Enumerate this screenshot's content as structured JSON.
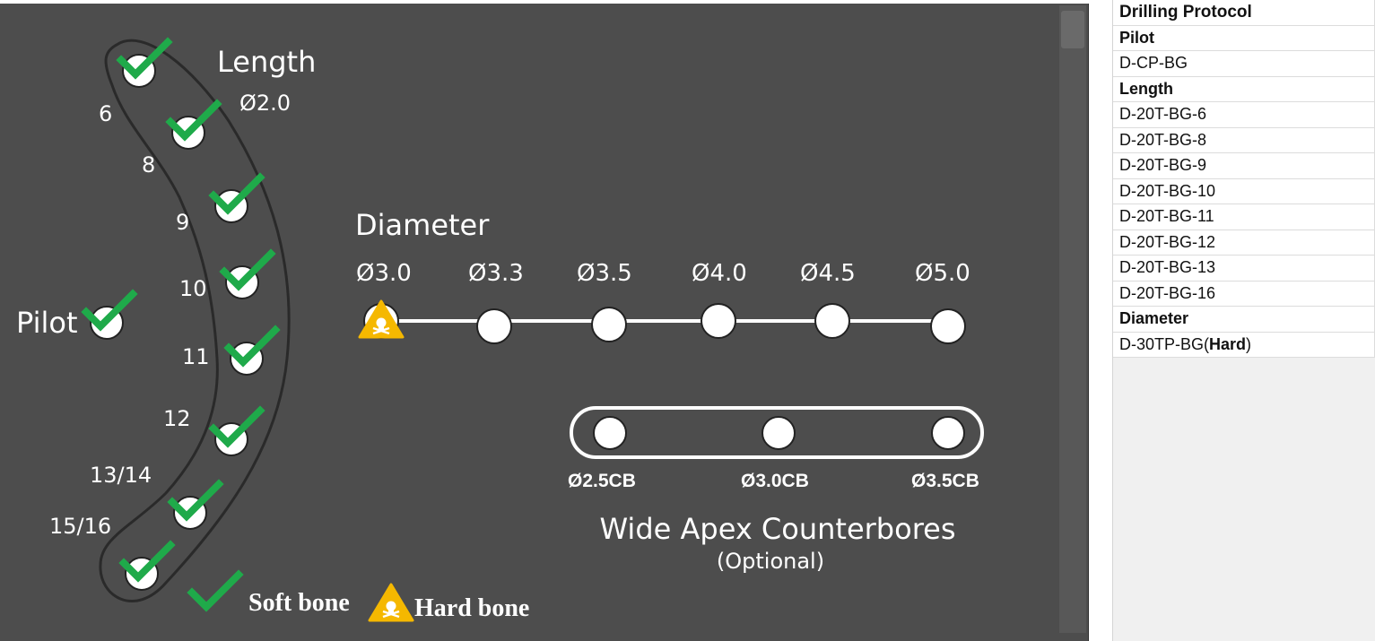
{
  "diagram": {
    "length_title": "Length",
    "length_diameter": "Ø2.0",
    "pilot_label": "Pilot",
    "length_steps": [
      "6",
      "8",
      "9",
      "10",
      "11",
      "12",
      "13/14",
      "15/16"
    ],
    "diameter_title": "Diameter",
    "diameter_steps": [
      "Ø3.0",
      "Ø3.3",
      "Ø3.5",
      "Ø4.0",
      "Ø4.5",
      "Ø5.0"
    ],
    "counterbore_steps": [
      "Ø2.5CB",
      "Ø3.0CB",
      "Ø3.5CB"
    ],
    "counterbore_title": "Wide Apex Counterbores",
    "counterbore_subtitle": "(Optional)",
    "legend_soft": "Soft bone",
    "legend_hard": "Hard bone",
    "colors": {
      "panel": "#4d4d4d",
      "check": "#1faa4a",
      "warning": "#f5b800",
      "node": "#ffffff"
    },
    "icons": [
      "check-icon",
      "warning-skull-icon"
    ]
  },
  "sheet": {
    "rows": [
      {
        "text": "Drilling Protocol",
        "style": "title"
      },
      {
        "text": "Pilot",
        "style": "header"
      },
      {
        "text": "D-CP-BG",
        "style": "normal"
      },
      {
        "text": "Length",
        "style": "header"
      },
      {
        "text": "D-20T-BG-6",
        "style": "normal"
      },
      {
        "text": "D-20T-BG-8",
        "style": "normal"
      },
      {
        "text": "D-20T-BG-9",
        "style": "normal"
      },
      {
        "text": "D-20T-BG-10",
        "style": "normal"
      },
      {
        "text": "D-20T-BG-11",
        "style": "normal"
      },
      {
        "text": "D-20T-BG-12",
        "style": "normal"
      },
      {
        "text": "D-20T-BG-13",
        "style": "normal"
      },
      {
        "text": "D-20T-BG-16",
        "style": "normal"
      },
      {
        "text": "Diameter",
        "style": "header"
      }
    ],
    "last_row": {
      "prefix": "D-30TP-BG(",
      "bold": "Hard",
      "suffix": ")"
    }
  }
}
